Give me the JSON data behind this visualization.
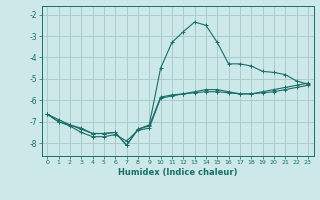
{
  "xlabel": "Humidex (Indice chaleur)",
  "bg_color": "#cce8e8",
  "grid_color": "#aacccc",
  "line_color": "#1a6e6a",
  "xlim": [
    -0.5,
    23.5
  ],
  "ylim": [
    -8.6,
    -1.6
  ],
  "xticks": [
    0,
    1,
    2,
    3,
    4,
    5,
    6,
    7,
    8,
    9,
    10,
    11,
    12,
    13,
    14,
    15,
    16,
    17,
    18,
    19,
    20,
    21,
    22,
    23
  ],
  "yticks": [
    -8,
    -7,
    -6,
    -5,
    -4,
    -3,
    -2
  ],
  "series1_x": [
    0,
    1,
    2,
    3,
    4,
    5,
    6,
    7,
    8,
    9,
    10,
    11,
    12,
    13,
    14,
    15,
    16,
    17,
    18,
    19,
    20,
    21,
    22,
    23
  ],
  "series1_y": [
    -6.65,
    -7.0,
    -7.15,
    -7.35,
    -7.55,
    -7.55,
    -7.5,
    -8.1,
    -7.35,
    -7.2,
    -5.85,
    -5.75,
    -5.7,
    -5.65,
    -5.6,
    -5.6,
    -5.65,
    -5.7,
    -5.7,
    -5.65,
    -5.6,
    -5.5,
    -5.4,
    -5.3
  ],
  "series2_x": [
    0,
    1,
    2,
    3,
    4,
    5,
    6,
    7,
    8,
    9,
    10,
    11,
    12,
    13,
    14,
    15,
    16,
    17,
    18,
    19,
    20,
    21,
    22,
    23
  ],
  "series2_y": [
    -6.65,
    -7.0,
    -7.2,
    -7.5,
    -7.7,
    -7.7,
    -7.6,
    -7.9,
    -7.4,
    -7.3,
    -5.9,
    -5.8,
    -5.7,
    -5.6,
    -5.5,
    -5.5,
    -5.6,
    -5.7,
    -5.7,
    -5.6,
    -5.5,
    -5.4,
    -5.3,
    -5.2
  ],
  "series3_x": [
    0,
    1,
    2,
    3,
    4,
    5,
    6,
    7,
    8,
    9,
    10,
    11,
    12,
    13,
    14,
    15,
    16,
    17,
    18,
    19,
    20,
    21,
    22,
    23
  ],
  "series3_y": [
    -6.65,
    -6.9,
    -7.15,
    -7.3,
    -7.55,
    -7.55,
    -7.5,
    -8.1,
    -7.35,
    -7.15,
    -4.5,
    -3.3,
    -2.8,
    -2.35,
    -2.5,
    -3.3,
    -4.3,
    -4.3,
    -4.4,
    -4.65,
    -4.7,
    -4.8,
    -5.1,
    -5.25
  ]
}
